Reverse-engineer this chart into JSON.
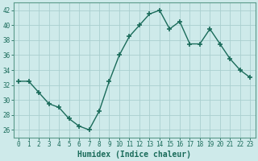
{
  "x": [
    0,
    1,
    2,
    3,
    4,
    5,
    6,
    7,
    8,
    9,
    10,
    11,
    12,
    13,
    14,
    15,
    16,
    17,
    18,
    19,
    20,
    21,
    22,
    23
  ],
  "y": [
    32.5,
    32.5,
    31.0,
    29.5,
    29.0,
    27.5,
    26.5,
    26.0,
    28.5,
    32.5,
    36.0,
    38.5,
    40.0,
    41.5,
    42.0,
    39.5,
    40.5,
    37.5,
    37.5,
    39.5,
    37.5,
    35.5,
    34.0,
    33.0
  ],
  "line_color": "#1a6b5a",
  "marker": "+",
  "marker_size": 4,
  "bg_color": "#ceeaea",
  "grid_color": "#aacfcf",
  "xlabel": "Humidex (Indice chaleur)",
  "ylabel": "",
  "ylim": [
    25,
    43
  ],
  "xlim": [
    -0.5,
    23.5
  ],
  "yticks": [
    26,
    28,
    30,
    32,
    34,
    36,
    38,
    40,
    42
  ],
  "xticks": [
    0,
    1,
    2,
    3,
    4,
    5,
    6,
    7,
    8,
    9,
    10,
    11,
    12,
    13,
    14,
    15,
    16,
    17,
    18,
    19,
    20,
    21,
    22,
    23
  ],
  "tick_color": "#1a6b5a",
  "axis_color": "#5a9a8a",
  "label_fontsize": 5.5,
  "xlabel_fontsize": 7
}
